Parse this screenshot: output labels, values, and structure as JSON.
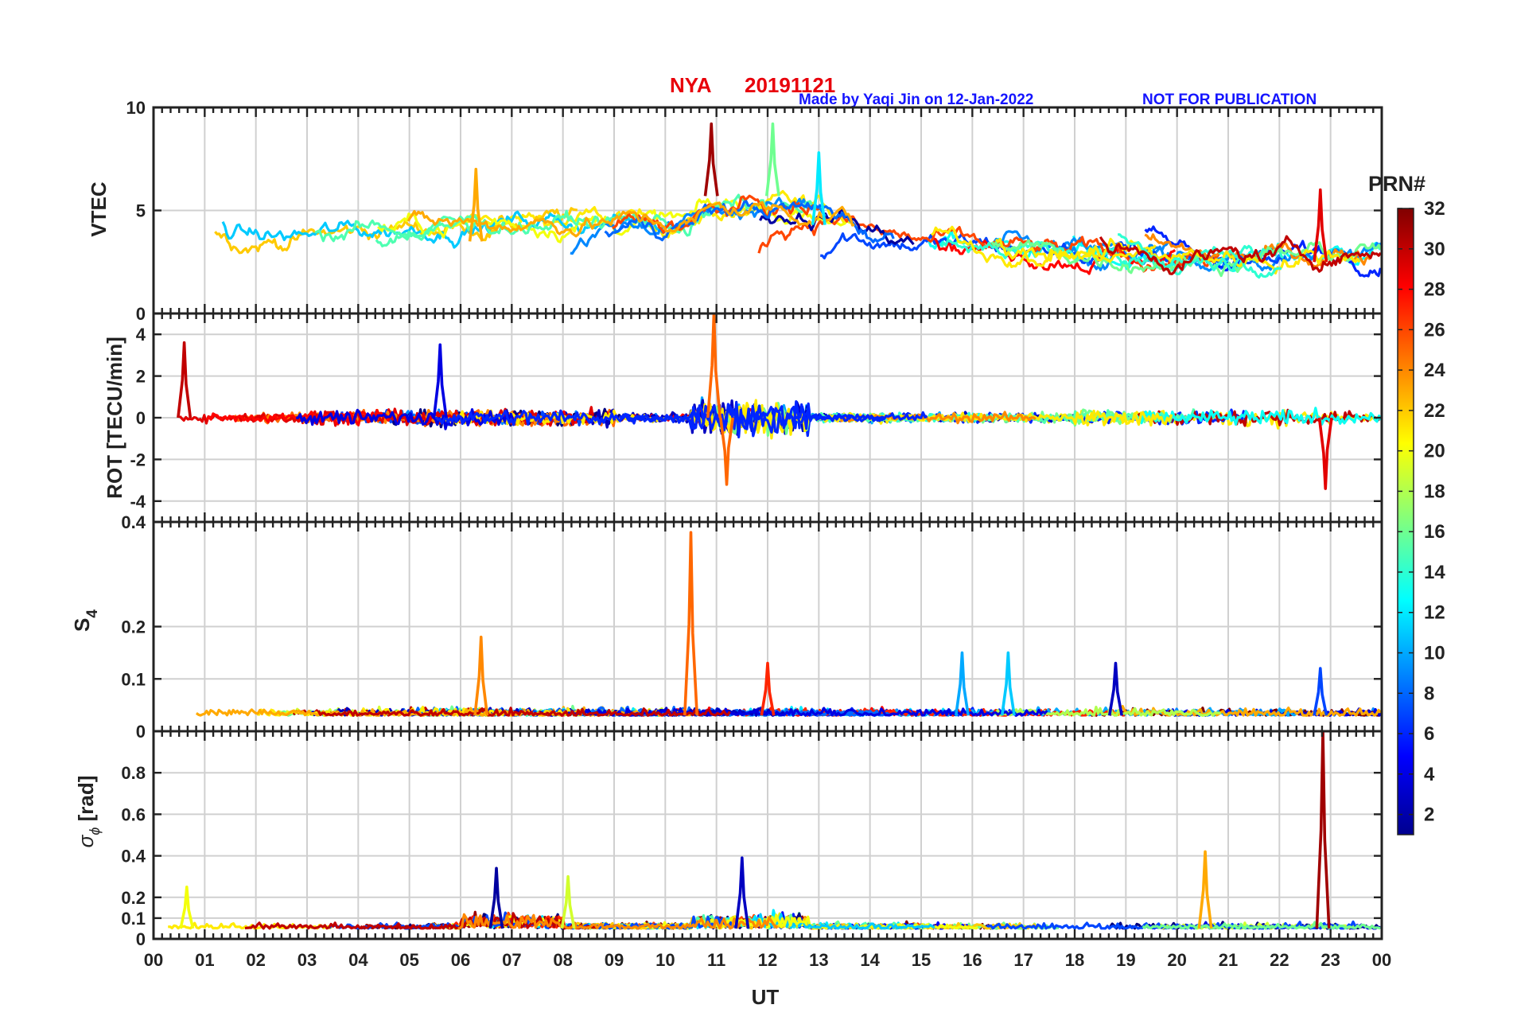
{
  "title": {
    "station": "NYA",
    "date": "20191121",
    "credit": "Made by Yaqi Jin on 12-Jan-2022",
    "notice": "NOT FOR PUBLICATION"
  },
  "colorbar": {
    "title": "PRN#",
    "ticks": [
      "2",
      "4",
      "6",
      "8",
      "10",
      "12",
      "14",
      "16",
      "18",
      "20",
      "22",
      "24",
      "26",
      "28",
      "30",
      "32"
    ],
    "range": [
      1,
      32
    ],
    "colormap": "jet"
  },
  "xaxis": {
    "label": "UT",
    "ticks": [
      "00",
      "01",
      "02",
      "03",
      "04",
      "05",
      "06",
      "07",
      "08",
      "09",
      "10",
      "11",
      "12",
      "13",
      "14",
      "15",
      "16",
      "17",
      "18",
      "19",
      "20",
      "21",
      "22",
      "23",
      "00"
    ],
    "range_hours": [
      0,
      24
    ]
  },
  "chart_data": [
    {
      "type": "line",
      "panel": "vtec",
      "ylabel": "VTEC",
      "ylim": [
        0,
        10
      ],
      "yticks": [
        "0",
        "5",
        "10"
      ],
      "grid": true,
      "series_note": "one line per GPS PRN, colored by PRN#",
      "peaks": [
        {
          "hour": 10.9,
          "value": 9.2,
          "prn": 31
        },
        {
          "hour": 12.1,
          "value": 9.2,
          "prn": 16
        },
        {
          "hour": 13.0,
          "value": 7.8,
          "prn": 12
        },
        {
          "hour": 6.3,
          "value": 7.0,
          "prn": 23
        },
        {
          "hour": 22.8,
          "value": 6.0,
          "prn": 29
        }
      ]
    },
    {
      "type": "line",
      "panel": "rot",
      "ylabel": "ROT [TECU/min]",
      "ylim": [
        -5,
        5
      ],
      "yticks": [
        "-4",
        "-2",
        "0",
        "2",
        "4"
      ],
      "grid": true,
      "peaks": [
        {
          "hour": 10.95,
          "value": 5.0,
          "prn": 25
        },
        {
          "hour": 0.6,
          "value": 3.6,
          "prn": 30
        },
        {
          "hour": 5.6,
          "value": 3.5,
          "prn": 4
        },
        {
          "hour": 22.9,
          "value": -3.4,
          "prn": 29
        },
        {
          "hour": 11.2,
          "value": -3.2,
          "prn": 25
        }
      ]
    },
    {
      "type": "line",
      "panel": "s4",
      "ylabel": "S4",
      "ylim": [
        0,
        0.4
      ],
      "yticks": [
        "0",
        "0.1",
        "0.2",
        "0.4"
      ],
      "grid": true,
      "peaks": [
        {
          "hour": 10.5,
          "value": 0.38,
          "prn": 25
        },
        {
          "hour": 6.4,
          "value": 0.18,
          "prn": 24
        },
        {
          "hour": 15.8,
          "value": 0.15,
          "prn": 10
        },
        {
          "hour": 16.7,
          "value": 0.15,
          "prn": 11
        },
        {
          "hour": 18.8,
          "value": 0.13,
          "prn": 3
        },
        {
          "hour": 12.0,
          "value": 0.13,
          "prn": 27
        },
        {
          "hour": 22.8,
          "value": 0.12,
          "prn": 7
        }
      ]
    },
    {
      "type": "line",
      "panel": "sigma_phi",
      "ylabel": "σϕ [rad]",
      "ylim": [
        0,
        1
      ],
      "yticks": [
        "0",
        "0.1",
        "0.2",
        "0.4",
        "0.6",
        "0.8"
      ],
      "grid": true,
      "peaks": [
        {
          "hour": 22.85,
          "value": 1.0,
          "prn": 31
        },
        {
          "hour": 20.55,
          "value": 0.42,
          "prn": 23
        },
        {
          "hour": 11.5,
          "value": 0.39,
          "prn": 3
        },
        {
          "hour": 6.7,
          "value": 0.34,
          "prn": 2
        },
        {
          "hour": 8.1,
          "value": 0.3,
          "prn": 19
        },
        {
          "hour": 0.65,
          "value": 0.25,
          "prn": 20
        }
      ]
    }
  ]
}
